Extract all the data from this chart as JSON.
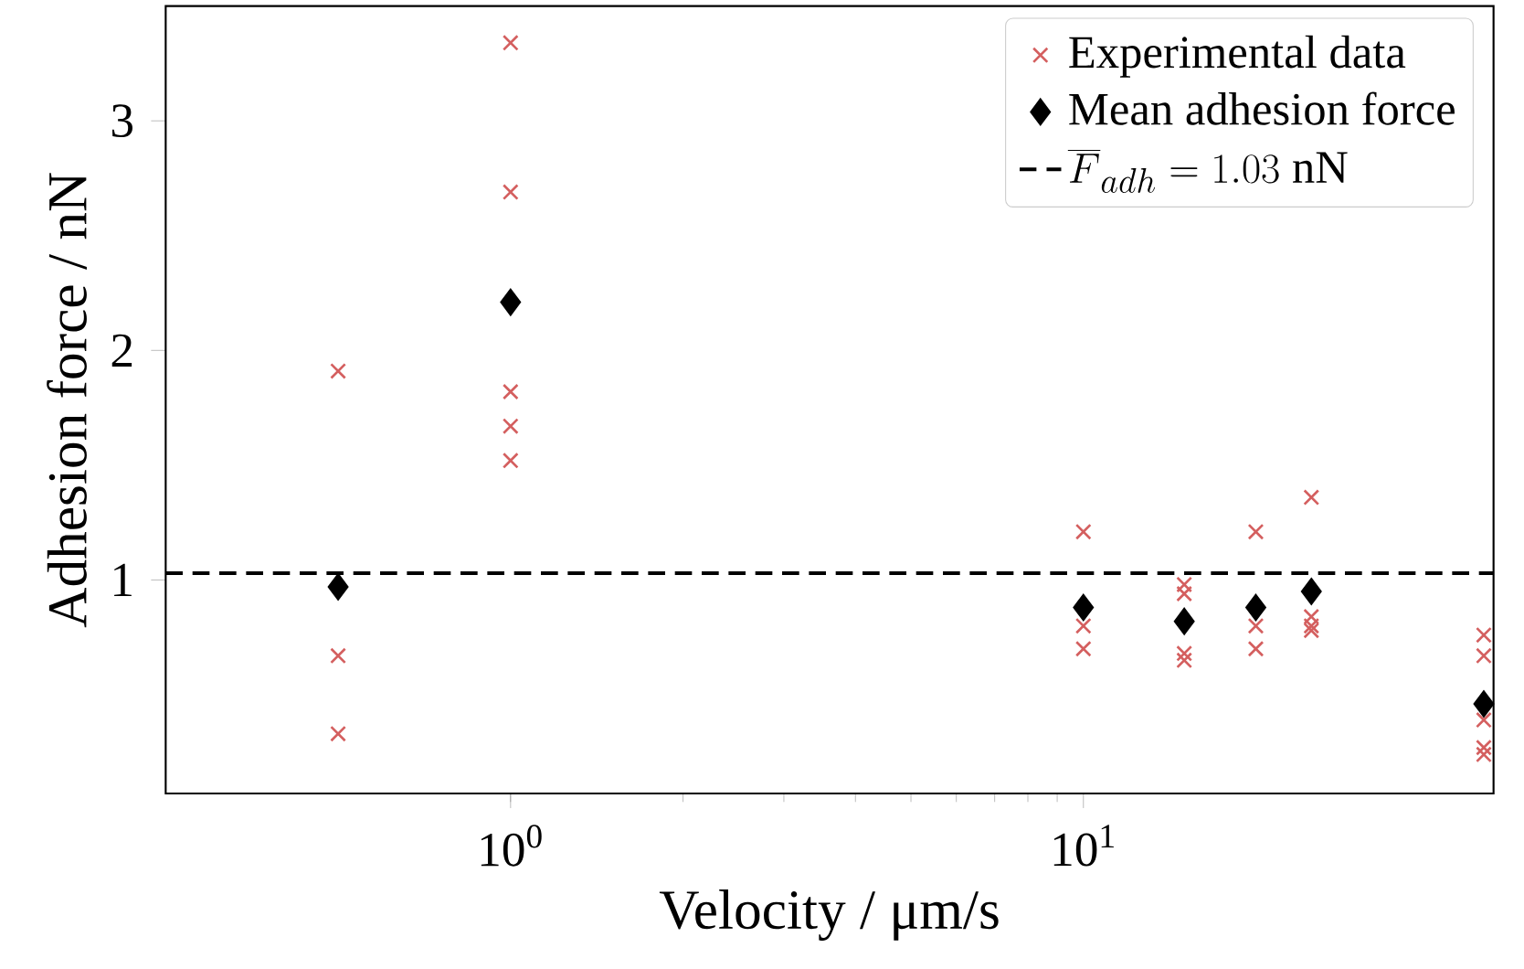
{
  "chart_data": {
    "type": "scatter",
    "xlabel": "Velocity / μm/s",
    "ylabel": "Adhesion force / nN",
    "log": "x",
    "xlim": [
      0.25,
      52
    ],
    "ylim": [
      0.07,
      3.5
    ],
    "xticks": [
      {
        "value": 1,
        "label": "10$^{0}$"
      },
      {
        "value": 10,
        "label": "10$^{1}$"
      }
    ],
    "yticks": [
      1,
      2,
      3
    ],
    "legend": "top right",
    "grid": false,
    "series": [
      {
        "name": "Experimental data",
        "color": "#d45f5f",
        "marker": "cross",
        "x": [
          0.5,
          0.5,
          0.5,
          1,
          1,
          1,
          1,
          1,
          10,
          10,
          10,
          15,
          15,
          15,
          15,
          20,
          20,
          20,
          25,
          25,
          25,
          25,
          50,
          50,
          50,
          50,
          50
        ],
        "values": [
          1.91,
          0.67,
          0.33,
          3.34,
          2.69,
          1.82,
          1.67,
          1.52,
          1.21,
          0.8,
          0.7,
          0.98,
          0.94,
          0.68,
          0.65,
          1.21,
          0.8,
          0.7,
          1.36,
          0.84,
          0.8,
          0.78,
          0.76,
          0.67,
          0.39,
          0.27,
          0.24
        ]
      },
      {
        "name": "Mean adhesion force",
        "color": "#000000",
        "marker": "diamond",
        "x": [
          0.5,
          1,
          10,
          15,
          20,
          25,
          50
        ],
        "values": [
          0.97,
          2.21,
          0.88,
          0.82,
          0.88,
          0.95,
          0.46
        ]
      }
    ],
    "ref_lines": [
      {
        "axis": "y",
        "value": 1.03,
        "label": "\\overline{F}_{adh} = 1.03~\\mathrm{nN}",
        "color": "#000000",
        "line_style": "dashed"
      }
    ]
  }
}
